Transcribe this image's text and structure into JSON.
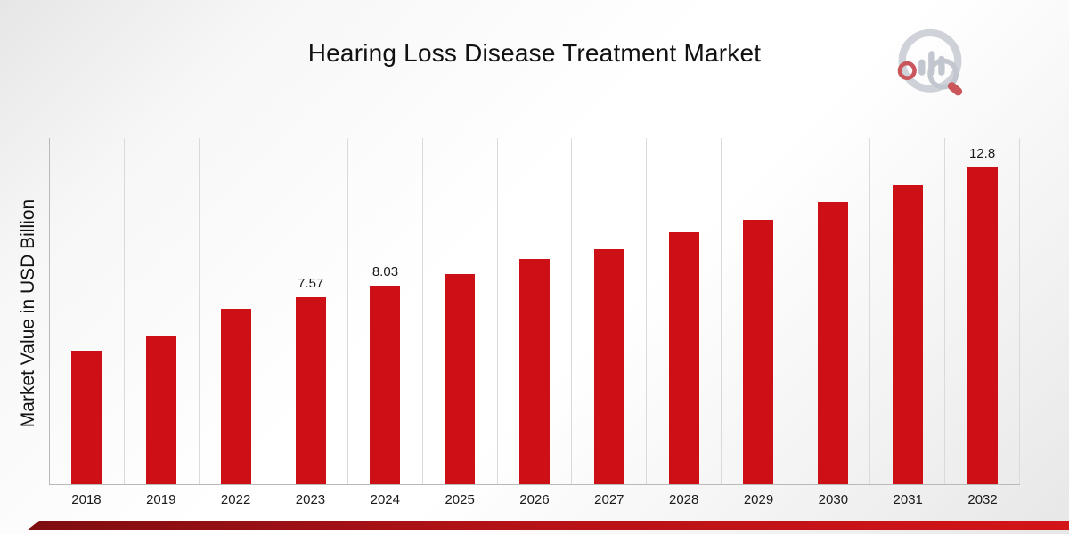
{
  "header": {
    "title": "Hearing Loss Disease Treatment Market",
    "logo": "market-research-chart-magnifier-logo"
  },
  "chart_data": {
    "type": "bar",
    "title": "Hearing Loss Disease Treatment Market",
    "xlabel": "",
    "ylabel": "Market Value in USD Billion",
    "categories": [
      "2018",
      "2019",
      "2022",
      "2023",
      "2024",
      "2025",
      "2026",
      "2027",
      "2028",
      "2029",
      "2030",
      "2031",
      "2032"
    ],
    "values": [
      5.4,
      6.0,
      7.1,
      7.57,
      8.03,
      8.5,
      9.1,
      9.5,
      10.2,
      10.7,
      11.4,
      12.1,
      12.8
    ],
    "data_labels": [
      "",
      "",
      "",
      "7.57",
      "8.03",
      "",
      "",
      "",
      "",
      "",
      "",
      "",
      "12.8"
    ],
    "ylim": [
      0,
      14
    ],
    "grid": "vertical",
    "legend": "none",
    "bar_color": "#cc1016"
  },
  "footer": {
    "accent_gradient_left": "#7e0d10",
    "accent_gradient_mid": "#b31217",
    "accent_gradient_right": "#d31418"
  }
}
